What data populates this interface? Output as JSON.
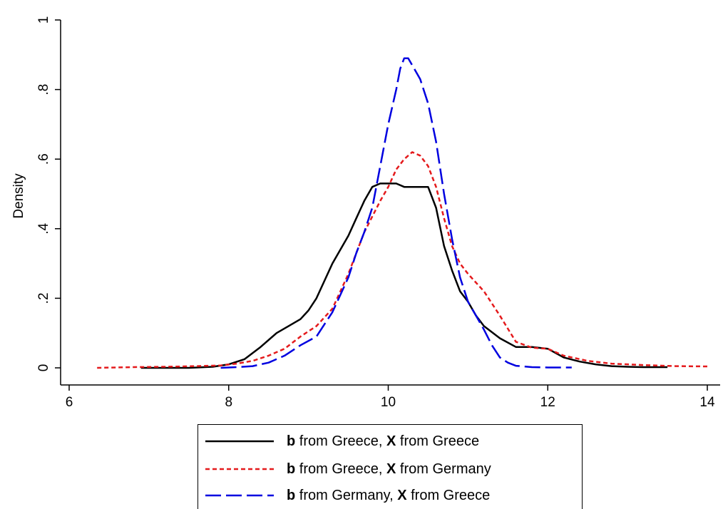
{
  "chart_data": {
    "type": "line",
    "title": "",
    "xlabel": "",
    "ylabel": "Density",
    "xlim": [
      6,
      14
    ],
    "ylim": [
      0,
      1
    ],
    "xticks": [
      6,
      8,
      10,
      12,
      14
    ],
    "xtick_labels": [
      "6",
      "8",
      "10",
      "12",
      "14"
    ],
    "yticks": [
      0,
      0.2,
      0.4,
      0.6,
      0.8,
      1
    ],
    "ytick_labels": [
      "0",
      ".2",
      ".4",
      ".6",
      ".8",
      "1"
    ],
    "grid": false,
    "legend_position": "bottom",
    "series": [
      {
        "color": "#000000",
        "style": "solid",
        "legend": {
          "b": "b",
          "mid": " from Greece, ",
          "x": "X",
          "end": " from Greece"
        },
        "x": [
          6.9,
          7.5,
          7.8,
          8.0,
          8.2,
          8.4,
          8.6,
          8.75,
          8.9,
          9.0,
          9.1,
          9.2,
          9.3,
          9.4,
          9.5,
          9.6,
          9.7,
          9.8,
          9.9,
          10.0,
          10.1,
          10.2,
          10.3,
          10.4,
          10.5,
          10.6,
          10.7,
          10.8,
          10.9,
          11.0,
          11.1,
          11.2,
          11.4,
          11.6,
          11.8,
          12.0,
          12.2,
          12.4,
          12.6,
          12.8,
          13.0,
          13.2,
          13.5
        ],
        "y": [
          0,
          0,
          0.003,
          0.01,
          0.025,
          0.06,
          0.1,
          0.12,
          0.14,
          0.165,
          0.2,
          0.25,
          0.3,
          0.34,
          0.38,
          0.43,
          0.48,
          0.52,
          0.53,
          0.53,
          0.53,
          0.52,
          0.52,
          0.52,
          0.52,
          0.46,
          0.35,
          0.28,
          0.22,
          0.19,
          0.15,
          0.12,
          0.085,
          0.06,
          0.06,
          0.055,
          0.03,
          0.018,
          0.01,
          0.005,
          0.003,
          0.002,
          0.002
        ]
      },
      {
        "color": "#e41a1c",
        "style": "short-dash",
        "legend": {
          "b": "b",
          "mid": " from Greece, ",
          "x": "X",
          "end": " from Germany"
        },
        "x": [
          6.35,
          6.8,
          7.2,
          7.6,
          7.9,
          8.1,
          8.3,
          8.5,
          8.7,
          8.9,
          9.1,
          9.3,
          9.5,
          9.7,
          9.9,
          10.0,
          10.1,
          10.2,
          10.3,
          10.4,
          10.5,
          10.6,
          10.7,
          10.8,
          10.9,
          11.0,
          11.2,
          11.4,
          11.6,
          11.8,
          12.0,
          12.2,
          12.5,
          12.8,
          13.2,
          13.6,
          14.0
        ],
        "y": [
          0,
          0.002,
          0.003,
          0.005,
          0.007,
          0.012,
          0.02,
          0.035,
          0.055,
          0.09,
          0.12,
          0.17,
          0.27,
          0.39,
          0.48,
          0.52,
          0.57,
          0.6,
          0.62,
          0.61,
          0.58,
          0.52,
          0.43,
          0.35,
          0.3,
          0.27,
          0.22,
          0.15,
          0.075,
          0.058,
          0.055,
          0.035,
          0.02,
          0.012,
          0.008,
          0.005,
          0.004
        ]
      },
      {
        "color": "#0000e0",
        "style": "long-dash",
        "legend": {
          "b": "b",
          "mid": " from Germany, ",
          "x": "X",
          "end": " from Greece"
        },
        "x": [
          7.9,
          8.1,
          8.3,
          8.5,
          8.7,
          8.9,
          9.1,
          9.3,
          9.5,
          9.6,
          9.7,
          9.8,
          9.9,
          10.0,
          10.1,
          10.15,
          10.2,
          10.25,
          10.3,
          10.4,
          10.5,
          10.6,
          10.7,
          10.8,
          10.9,
          11.0,
          11.1,
          11.2,
          11.3,
          11.4,
          11.5,
          11.6,
          11.8,
          12.0,
          12.3
        ],
        "y": [
          0,
          0.002,
          0.005,
          0.015,
          0.035,
          0.065,
          0.09,
          0.16,
          0.26,
          0.33,
          0.39,
          0.46,
          0.58,
          0.7,
          0.8,
          0.86,
          0.89,
          0.89,
          0.87,
          0.83,
          0.76,
          0.65,
          0.5,
          0.37,
          0.26,
          0.19,
          0.15,
          0.11,
          0.065,
          0.03,
          0.015,
          0.006,
          0.002,
          0.001,
          0.001
        ]
      }
    ]
  }
}
